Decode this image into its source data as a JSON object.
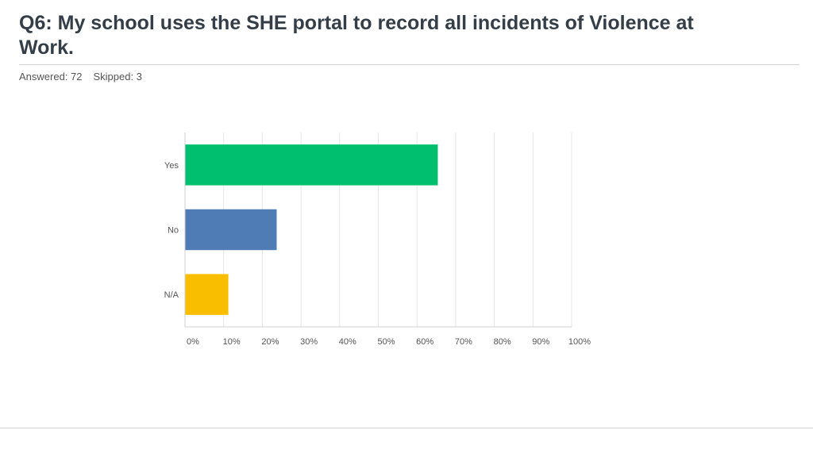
{
  "header": {
    "title": "Q6: My school uses the SHE portal to record all incidents of Violence at Work.",
    "answered": "Answered: 72",
    "skipped": "Skipped: 3"
  },
  "chart_data": {
    "type": "bar",
    "orientation": "horizontal",
    "categories": [
      "Yes",
      "No",
      "N/A"
    ],
    "values": [
      65.28,
      23.61,
      11.11
    ],
    "colors": [
      "#00bf6f",
      "#507cb6",
      "#f9be00"
    ],
    "xlim": [
      0,
      100
    ],
    "xticks": [
      "0%",
      "10%",
      "20%",
      "30%",
      "40%",
      "50%",
      "60%",
      "70%",
      "80%",
      "90%",
      "100%"
    ],
    "grid": true
  }
}
